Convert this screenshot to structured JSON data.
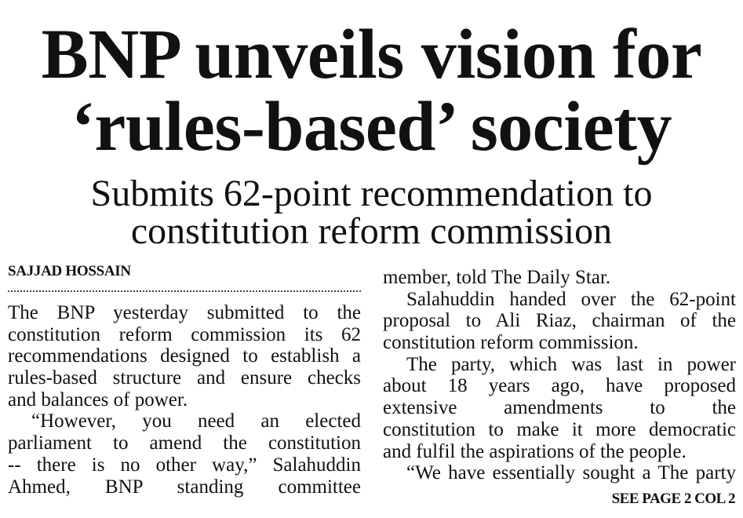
{
  "headline": {
    "line1": "BNP unveils vision for",
    "line2": "‘rules-based’ society"
  },
  "subheadline": {
    "line1": "Submits 62-point recommendation to",
    "line2": "constitution reform commission"
  },
  "byline": "SAJJAD HOSSAIN",
  "left_column": [
    {
      "text": "The BNP yesterday submitted to the",
      "style": "justify"
    },
    {
      "text": "constitution reform commission its 62",
      "style": "justify"
    },
    {
      "text": "recommendations designed to establish a",
      "style": "justify"
    },
    {
      "text": "rules-based structure and ensure checks",
      "style": "justify"
    },
    {
      "text": "and balances of power.",
      "style": "last"
    },
    {
      "text": "“However, you need an elected",
      "style": "indent"
    },
    {
      "text": "parliament to amend the constitution",
      "style": "justify"
    },
    {
      "text": "-- there is no other way,” Salahuddin",
      "style": "justify"
    },
    {
      "text": "Ahmed, BNP standing committee",
      "style": "justify"
    }
  ],
  "right_column": [
    {
      "text": "member, told The Daily Star.",
      "style": "last"
    },
    {
      "text": "Salahuddin handed over the 62-point",
      "style": "indent"
    },
    {
      "text": "proposal to Ali Riaz, chairman of the",
      "style": "justify"
    },
    {
      "text": "constitution reform commission.",
      "style": "last"
    },
    {
      "text": "The party, which was last in power",
      "style": "indent"
    },
    {
      "text": "about 18 years ago, have proposed",
      "style": "justify"
    },
    {
      "text": "extensive amendments to the",
      "style": "justify"
    },
    {
      "text": "constitution to make it more democratic",
      "style": "justify"
    },
    {
      "text": "and fulfil the aspirations of the people.",
      "style": "last"
    },
    {
      "text": "“We have essentially sought a The party",
      "style": "indent"
    }
  ],
  "jump_line": "SEE PAGE 2 COL 2"
}
